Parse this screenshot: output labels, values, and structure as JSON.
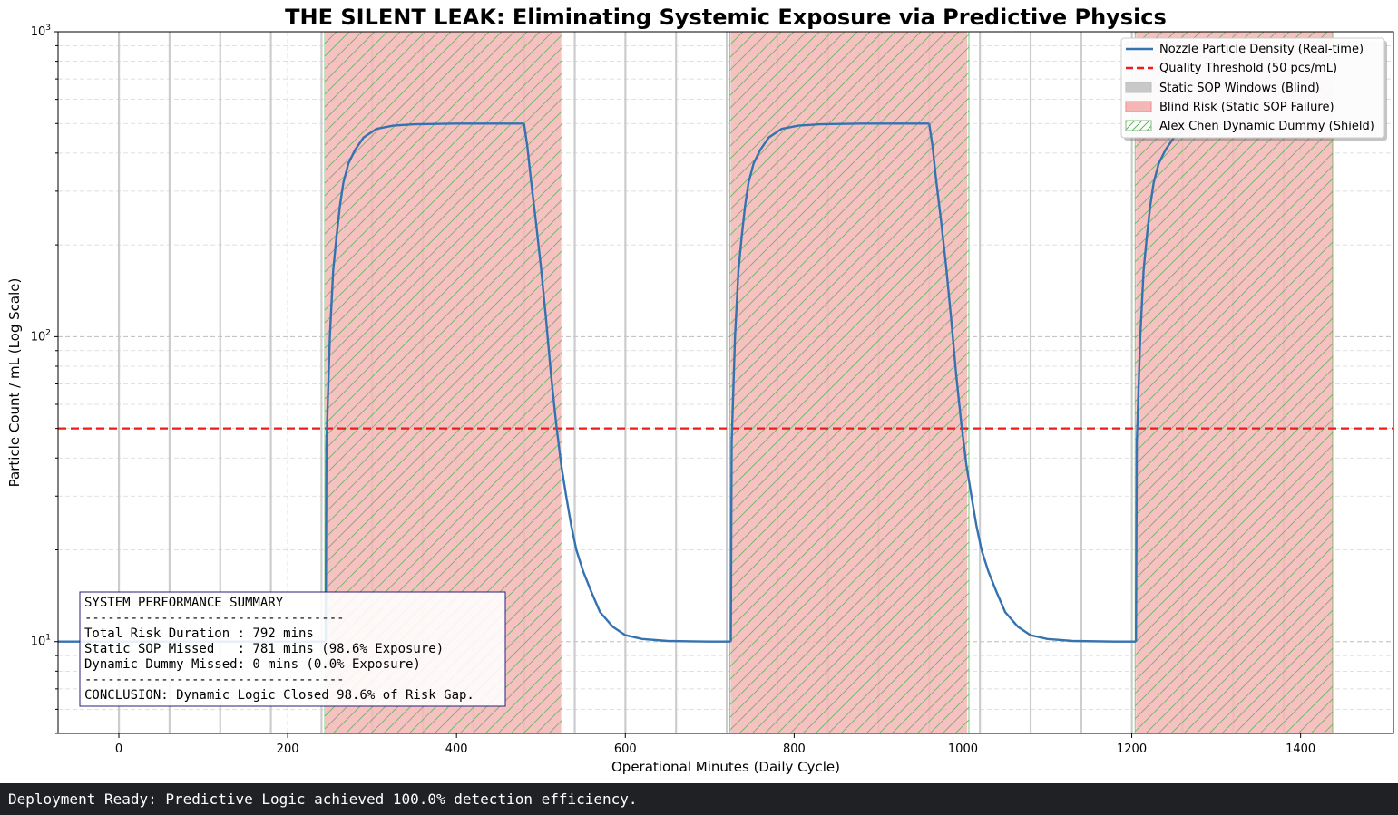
{
  "chart_data": {
    "type": "line",
    "title": "THE SILENT LEAK: Eliminating Systemic Exposure via Predictive Physics",
    "xlabel": "Operational Minutes (Daily Cycle)",
    "ylabel": "Particle Count / mL (Log Scale)",
    "yscale": "log",
    "xlim": [
      -72,
      1510
    ],
    "ylim": [
      5,
      1000
    ],
    "xticks": [
      0,
      200,
      400,
      600,
      800,
      1000,
      1200,
      1400
    ],
    "xtick_labels": [
      "0",
      "200",
      "400",
      "600",
      "800",
      "1000",
      "1200",
      "1400"
    ],
    "yticks": [
      10,
      100,
      1000
    ],
    "grid": true,
    "legend_position": "top-right",
    "series": [
      {
        "name": "Nozzle Particle Density (Real-time)",
        "color": "#3573b0",
        "segments": [
          {
            "x": [
              -72,
              245,
              246,
              250,
              254,
              258,
              262,
              266,
              272,
              280,
              290,
              305,
              325,
              350,
              400,
              450,
              480
            ],
            "y": [
              10,
              10,
              45,
              100,
              165,
              215,
              270,
              320,
              370,
              410,
              450,
              480,
              492,
              497,
              500,
              500,
              500
            ]
          },
          {
            "x": [
              480,
              484,
              488,
              494,
              500,
              506,
              512,
              518,
              524,
              530,
              536,
              542,
              550,
              560,
              570,
              585,
              600,
              620,
              650,
              700,
              725
            ],
            "y": [
              500,
              420,
              330,
              240,
              170,
              115,
              75,
              52,
              38,
              30,
              24,
              20,
              17,
              14.5,
              12.5,
              11.2,
              10.5,
              10.2,
              10.05,
              10,
              10
            ]
          },
          {
            "x": [
              725,
              726,
              730,
              734,
              738,
              742,
              746,
              752,
              760,
              770,
              785,
              805,
              830,
              880,
              930,
              960
            ],
            "y": [
              10,
              45,
              100,
              165,
              215,
              270,
              320,
              370,
              410,
              450,
              480,
              492,
              497,
              500,
              500,
              500
            ]
          },
          {
            "x": [
              960,
              964,
              968,
              974,
              980,
              986,
              992,
              998,
              1004,
              1010,
              1016,
              1022,
              1030,
              1040,
              1050,
              1065,
              1080,
              1100,
              1130,
              1180,
              1205
            ],
            "y": [
              500,
              420,
              330,
              240,
              170,
              115,
              75,
              52,
              38,
              30,
              24,
              20,
              17,
              14.5,
              12.5,
              11.2,
              10.5,
              10.2,
              10.05,
              10,
              10
            ]
          },
          {
            "x": [
              1205,
              1206,
              1210,
              1214,
              1218,
              1222,
              1226,
              1232,
              1240,
              1250,
              1265,
              1285
            ],
            "y": [
              10,
              45,
              100,
              165,
              215,
              270,
              320,
              370,
              410,
              450,
              480,
              492
            ]
          }
        ]
      },
      {
        "name": "Quality Threshold (50 pcs/mL)",
        "color": "#ee1c1c",
        "y": 50
      }
    ],
    "static_sop_windows": {
      "name": "Static SOP Windows (Blind)",
      "color": "#c8c8c8",
      "x": [
        0,
        60,
        120,
        180,
        240,
        300,
        360,
        420,
        480,
        540,
        600,
        660,
        720,
        780,
        840,
        900,
        960,
        1020,
        1080,
        1140,
        1200,
        1260,
        1320,
        1380
      ]
    },
    "blind_risk": {
      "name": "Blind Risk (Static SOP Failure)",
      "color": "#f4b6b6",
      "ranges": [
        [
          245,
          524
        ],
        [
          725,
          1005
        ],
        [
          1205,
          1438
        ]
      ]
    },
    "dynamic_dummy": {
      "name": "Alex Chen Dynamic Dummy (Shield)",
      "color": "#4fae4f",
      "ranges": [
        [
          244,
          525
        ],
        [
          724,
          1007
        ],
        [
          1204,
          1438
        ]
      ]
    },
    "annotation": {
      "lines": [
        "SYSTEM PERFORMANCE SUMMARY",
        "----------------------------------",
        "Total Risk Duration : 792 mins",
        "Static SOP Missed   : 781 mins (98.6% Exposure)",
        "Dynamic Dummy Missed: 0 mins (0.0% Exposure)",
        "----------------------------------",
        "CONCLUSION: Dynamic Logic Closed 98.6% of Risk Gap."
      ]
    }
  },
  "footer": {
    "status": "Deployment Ready: Predictive Logic achieved 100.0% detection efficiency."
  }
}
